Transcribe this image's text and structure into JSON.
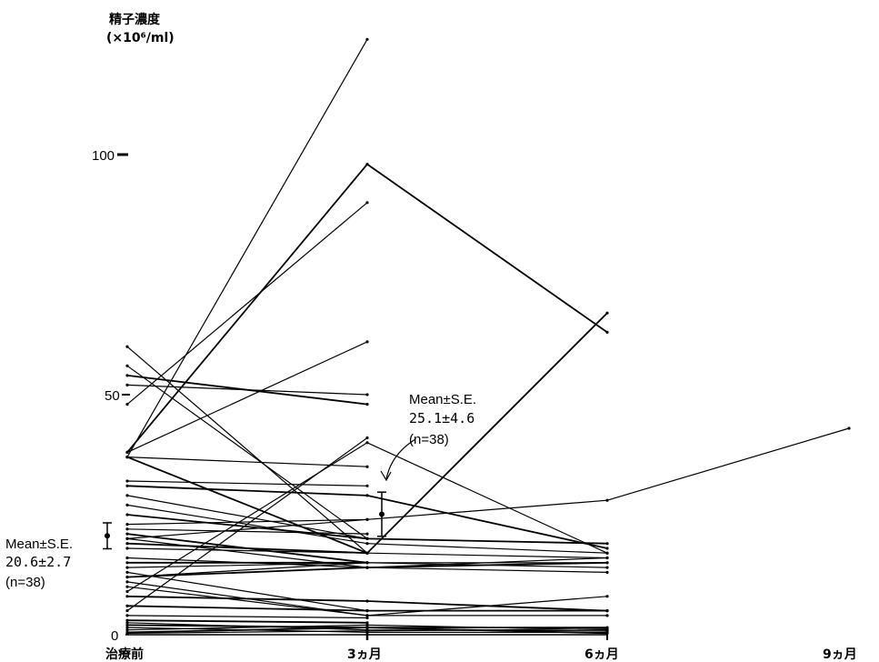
{
  "chart_data": {
    "type": "line",
    "ylabel_line1": "精子濃度",
    "ylabel_line2": "(×10⁶/ml)",
    "x_categories": [
      "治療前",
      "3ヵ月",
      "6ヵ月",
      "9ヵ月"
    ],
    "y_ticks": [
      "0",
      "50",
      "100"
    ],
    "ylim": [
      0,
      130
    ],
    "grid": false,
    "legend": "none",
    "series": [
      {
        "values": [
          2,
          1.5,
          1.5
        ]
      },
      {
        "values": [
          1.5,
          0.5,
          0.5
        ]
      },
      {
        "values": [
          1,
          2,
          1
        ]
      },
      {
        "values": [
          0.5,
          1.5,
          0.3
        ]
      },
      {
        "values": [
          2.5,
          1,
          0.8
        ]
      },
      {
        "values": [
          0.3,
          0.8,
          1.2
        ]
      },
      {
        "values": [
          3,
          2.5
        ]
      },
      {
        "values": [
          4,
          3.5
        ]
      },
      {
        "values": [
          10,
          4,
          8
        ]
      },
      {
        "values": [
          6,
          5,
          5
        ]
      },
      {
        "values": [
          11,
          4,
          4
        ]
      },
      {
        "values": [
          13,
          5,
          5
        ]
      },
      {
        "values": [
          8,
          7,
          5
        ]
      },
      {
        "values": [
          5,
          41
        ]
      },
      {
        "values": [
          9,
          40,
          17
        ]
      },
      {
        "values": [
          12,
          14,
          15
        ]
      },
      {
        "values": [
          12,
          15,
          14
        ]
      },
      {
        "values": [
          14,
          15,
          15
        ]
      },
      {
        "values": [
          15,
          15
        ]
      },
      {
        "values": [
          16,
          14,
          16
        ]
      },
      {
        "values": [
          18,
          17,
          16
        ]
      },
      {
        "values": [
          19,
          17
        ]
      },
      {
        "values": [
          20,
          24
        ]
      },
      {
        "values": [
          20,
          14,
          13
        ]
      },
      {
        "values": [
          21,
          15
        ]
      },
      {
        "values": [
          22,
          21
        ]
      },
      {
        "values": [
          23,
          24,
          28,
          43
        ]
      },
      {
        "values": [
          25,
          20,
          19
        ]
      },
      {
        "values": [
          27,
          19,
          17
        ]
      },
      {
        "values": [
          29,
          20
        ]
      },
      {
        "values": [
          31,
          29,
          18
        ]
      },
      {
        "values": [
          32,
          31
        ]
      },
      {
        "values": [
          37,
          35
        ]
      },
      {
        "values": [
          37,
          17,
          67
        ]
      },
      {
        "values": [
          37,
          124
        ]
      },
      {
        "values": [
          38,
          61
        ]
      },
      {
        "values": [
          38,
          98,
          63
        ]
      },
      {
        "values": [
          48,
          90
        ]
      },
      {
        "values": [
          52,
          50
        ]
      },
      {
        "values": [
          54,
          48
        ]
      },
      {
        "values": [
          60,
          17
        ]
      },
      {
        "values": [
          56,
          20
        ]
      }
    ],
    "annotations": [
      {
        "label": "Mean±S.E.",
        "value": "20.6±2.7",
        "n": "(n=38)",
        "mean": 20.6,
        "se": 2.7,
        "at": "治療前"
      },
      {
        "label": "Mean±S.E.",
        "value": "25.1±4.6",
        "n": "(n=38)",
        "mean": 25.1,
        "se": 4.6,
        "at": "3ヵ月"
      }
    ]
  }
}
